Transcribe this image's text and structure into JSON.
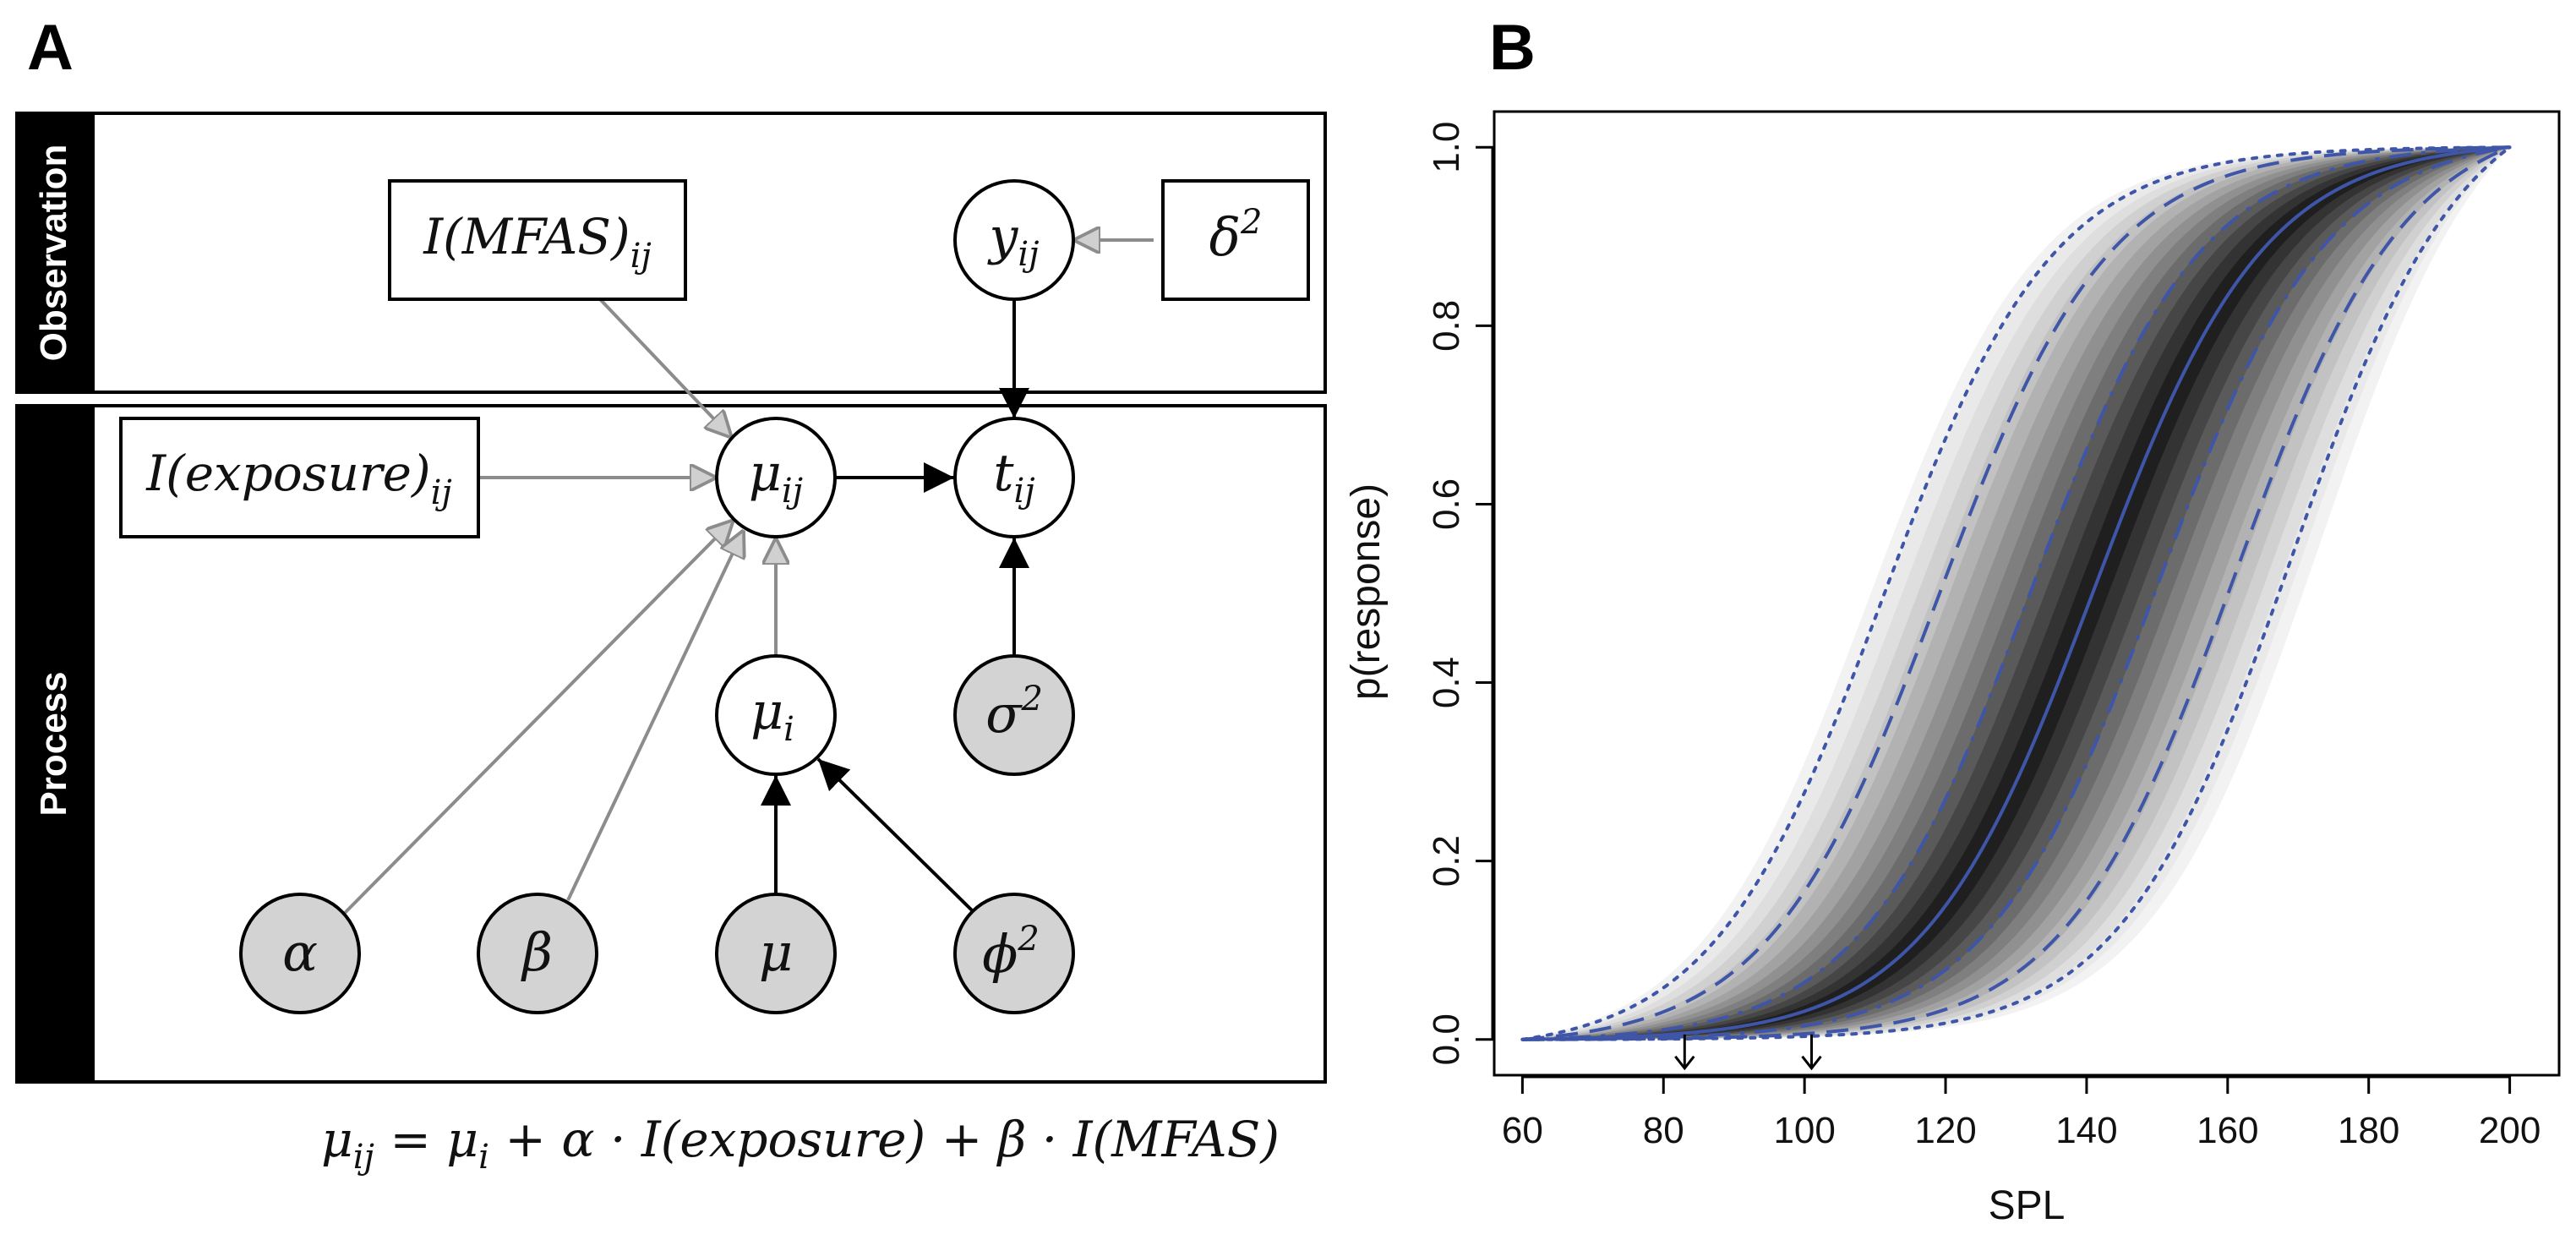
{
  "panel_a": {
    "letter": "A",
    "bands": {
      "observation": "Observation",
      "process": "Process"
    },
    "nodes": {
      "mfas": {
        "base": "I(MFAS)",
        "sub": "ij"
      },
      "exposure": {
        "base": "I(exposure)",
        "sub": "ij"
      },
      "y": {
        "base": "y",
        "sub": "ij"
      },
      "delta": {
        "base": "δ",
        "sup": "2"
      },
      "mu_ij": {
        "base": "μ",
        "sub": "ij"
      },
      "t": {
        "base": "t",
        "sub": "ij"
      },
      "mu_i": {
        "base": "μ",
        "sub": "i"
      },
      "sigma": {
        "base": "σ",
        "sup": "2"
      },
      "alpha": {
        "base": "α"
      },
      "beta": {
        "base": "β"
      },
      "mu": {
        "base": "μ"
      },
      "phi": {
        "base": "ϕ",
        "sup": "2"
      }
    },
    "equation": {
      "lhs_base": "μ",
      "lhs_sub": "ij",
      "eq": " = ",
      "mui_base": "μ",
      "mui_sub": "i",
      "rest": " + α · I(exposure) + β · I(MFAS)"
    },
    "colors": {
      "filled_node": "#d3d3d3",
      "grey_arrow": "#8c8c8c",
      "band": "#000000"
    }
  },
  "panel_b": {
    "letter": "B",
    "chart_data": {
      "type": "line",
      "xlabel": "SPL",
      "ylabel": "p(response)",
      "xlim": [
        56,
        207
      ],
      "ylim": [
        -0.04,
        1.04
      ],
      "xticks": [
        "60",
        "80",
        "100",
        "120",
        "140",
        "160",
        "180",
        "200"
      ],
      "yticks": [
        "0.0",
        "0.2",
        "0.4",
        "0.6",
        "0.8",
        "1.0"
      ],
      "curve_range": [
        60,
        200
      ],
      "series": [
        {
          "style": "solid",
          "midpoint": 141.0,
          "steepness": 5.5
        },
        {
          "style": "dashdot",
          "midpoint": 132.0,
          "steepness": 5.5
        },
        {
          "style": "dashdot",
          "midpoint": 150.0,
          "steepness": 5.5
        },
        {
          "style": "dashed",
          "midpoint": 119.0,
          "steepness": 5.5
        },
        {
          "style": "dashed",
          "midpoint": 161.0,
          "steepness": 5.5
        },
        {
          "style": "dotted",
          "midpoint": 111.0,
          "steepness": 5.5
        },
        {
          "style": "dotted",
          "midpoint": 169.0,
          "steepness": 5.5
        }
      ],
      "density_band": {
        "low_midpoint": 109,
        "high_midpoint": 173
      },
      "arrows_at_x": [
        83,
        101
      ],
      "line_color": "#3f56a8"
    }
  }
}
